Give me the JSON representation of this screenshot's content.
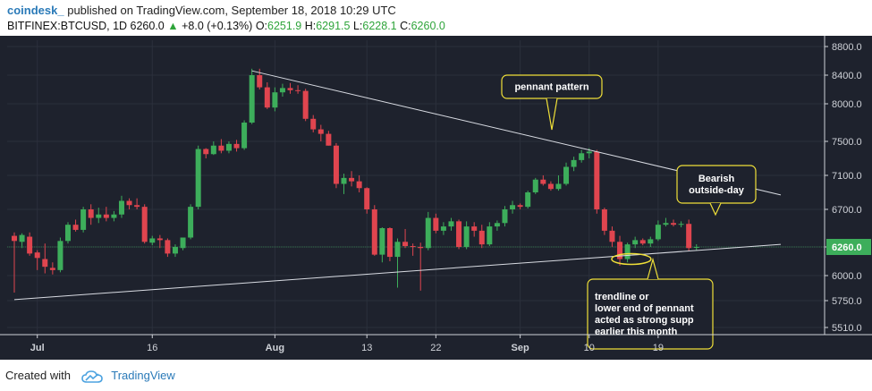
{
  "header": {
    "author": "coindesk_",
    "published": "published on TradingView.com, September 18, 2018 10:29 UTC",
    "symbol": "BITFINEX:BTCUSD, 1D",
    "last": "6260.0",
    "change": "+8.0 (+0.13%)",
    "o_label": "O:",
    "o_value": "6251.9",
    "h_label": "H:",
    "h_value": "6291.5",
    "l_label": "L:",
    "l_value": "6228.1",
    "c_label": "C:",
    "c_value": "6260.0"
  },
  "footer": {
    "created_with": "Created with",
    "brand": "TradingView"
  },
  "colors": {
    "up": "#3dae5b",
    "down": "#e0454f",
    "bg": "#1e222d",
    "annotation": "#f0e038",
    "trendline": "#d8dbe2"
  },
  "chart_data": {
    "type": "candlestick",
    "title": "BITFINEX:BTCUSD, 1D",
    "y_ticks": [
      "8800.0",
      "8400.0",
      "8000.0",
      "7500.0",
      "7100.0",
      "6700.0",
      "6260.0",
      "6000.0",
      "5750.0",
      "5510.0"
    ],
    "y_tick_values": [
      8800,
      8400,
      8000,
      7500,
      7100,
      6700,
      6260,
      6000,
      5750,
      5510
    ],
    "x_ticks": [
      "Jul",
      "16",
      "Aug",
      "13",
      "22",
      "Sep",
      "10",
      "19"
    ],
    "x_tick_days": [
      3,
      18,
      34,
      46,
      55,
      66,
      75,
      84
    ],
    "price_label": "6260.0",
    "candles": [
      {
        "o": 6390,
        "h": 6430,
        "l": 5830,
        "c": 6330
      },
      {
        "o": 6320,
        "h": 6420,
        "l": 6250,
        "c": 6400
      },
      {
        "o": 6380,
        "h": 6430,
        "l": 6180,
        "c": 6200
      },
      {
        "o": 6210,
        "h": 6230,
        "l": 6050,
        "c": 6160
      },
      {
        "o": 6150,
        "h": 6300,
        "l": 6020,
        "c": 6080
      },
      {
        "o": 6070,
        "h": 6120,
        "l": 6010,
        "c": 6050
      },
      {
        "o": 6050,
        "h": 6370,
        "l": 6030,
        "c": 6330
      },
      {
        "o": 6330,
        "h": 6550,
        "l": 6300,
        "c": 6520
      },
      {
        "o": 6520,
        "h": 6580,
        "l": 6440,
        "c": 6460
      },
      {
        "o": 6460,
        "h": 6730,
        "l": 6430,
        "c": 6700
      },
      {
        "o": 6700,
        "h": 6760,
        "l": 6520,
        "c": 6600
      },
      {
        "o": 6600,
        "h": 6720,
        "l": 6540,
        "c": 6640
      },
      {
        "o": 6640,
        "h": 6730,
        "l": 6560,
        "c": 6600
      },
      {
        "o": 6600,
        "h": 6680,
        "l": 6560,
        "c": 6640
      },
      {
        "o": 6640,
        "h": 6860,
        "l": 6600,
        "c": 6800
      },
      {
        "o": 6800,
        "h": 6830,
        "l": 6700,
        "c": 6750
      },
      {
        "o": 6750,
        "h": 6830,
        "l": 6700,
        "c": 6730
      },
      {
        "o": 6730,
        "h": 6760,
        "l": 6300,
        "c": 6320
      },
      {
        "o": 6310,
        "h": 6390,
        "l": 6280,
        "c": 6360
      },
      {
        "o": 6360,
        "h": 6400,
        "l": 6250,
        "c": 6340
      },
      {
        "o": 6340,
        "h": 6360,
        "l": 6170,
        "c": 6200
      },
      {
        "o": 6200,
        "h": 6290,
        "l": 6170,
        "c": 6260
      },
      {
        "o": 6250,
        "h": 6360,
        "l": 6230,
        "c": 6370
      },
      {
        "o": 6370,
        "h": 6760,
        "l": 6350,
        "c": 6730
      },
      {
        "o": 6730,
        "h": 7450,
        "l": 6700,
        "c": 7410
      },
      {
        "o": 7410,
        "h": 7420,
        "l": 7300,
        "c": 7350
      },
      {
        "o": 7350,
        "h": 7500,
        "l": 7340,
        "c": 7450
      },
      {
        "o": 7450,
        "h": 7530,
        "l": 7360,
        "c": 7390
      },
      {
        "o": 7390,
        "h": 7500,
        "l": 7360,
        "c": 7470
      },
      {
        "o": 7470,
        "h": 7520,
        "l": 7380,
        "c": 7420
      },
      {
        "o": 7420,
        "h": 7780,
        "l": 7400,
        "c": 7750
      },
      {
        "o": 7750,
        "h": 8490,
        "l": 7730,
        "c": 8400
      },
      {
        "o": 8400,
        "h": 8490,
        "l": 8200,
        "c": 8230
      },
      {
        "o": 8230,
        "h": 8300,
        "l": 7930,
        "c": 7950
      },
      {
        "o": 7950,
        "h": 8230,
        "l": 7900,
        "c": 8160
      },
      {
        "o": 8160,
        "h": 8280,
        "l": 8100,
        "c": 8220
      },
      {
        "o": 8220,
        "h": 8290,
        "l": 8140,
        "c": 8190
      },
      {
        "o": 8190,
        "h": 8260,
        "l": 8140,
        "c": 8180
      },
      {
        "o": 8180,
        "h": 8210,
        "l": 7770,
        "c": 7800
      },
      {
        "o": 7800,
        "h": 7850,
        "l": 7620,
        "c": 7660
      },
      {
        "o": 7660,
        "h": 7720,
        "l": 7500,
        "c": 7600
      },
      {
        "o": 7600,
        "h": 7640,
        "l": 7450,
        "c": 7450
      },
      {
        "o": 7450,
        "h": 7480,
        "l": 6950,
        "c": 7000
      },
      {
        "o": 7000,
        "h": 7120,
        "l": 6880,
        "c": 7070
      },
      {
        "o": 7070,
        "h": 7150,
        "l": 6970,
        "c": 7030
      },
      {
        "o": 7030,
        "h": 7100,
        "l": 6900,
        "c": 6950
      },
      {
        "o": 6950,
        "h": 6960,
        "l": 6650,
        "c": 6700
      },
      {
        "o": 6700,
        "h": 6750,
        "l": 6180,
        "c": 6190
      },
      {
        "o": 6190,
        "h": 6490,
        "l": 6120,
        "c": 6480
      },
      {
        "o": 6480,
        "h": 6490,
        "l": 6130,
        "c": 6170
      },
      {
        "o": 6170,
        "h": 6360,
        "l": 5880,
        "c": 6320
      },
      {
        "o": 6320,
        "h": 6470,
        "l": 6250,
        "c": 6270
      },
      {
        "o": 6270,
        "h": 6300,
        "l": 6180,
        "c": 6260
      },
      {
        "o": 6260,
        "h": 6310,
        "l": 5850,
        "c": 6250
      },
      {
        "o": 6250,
        "h": 6670,
        "l": 6230,
        "c": 6600
      },
      {
        "o": 6600,
        "h": 6650,
        "l": 6420,
        "c": 6450
      },
      {
        "o": 6450,
        "h": 6550,
        "l": 6400,
        "c": 6500
      },
      {
        "o": 6500,
        "h": 6600,
        "l": 6450,
        "c": 6560
      },
      {
        "o": 6560,
        "h": 6580,
        "l": 6240,
        "c": 6260
      },
      {
        "o": 6260,
        "h": 6560,
        "l": 6240,
        "c": 6500
      },
      {
        "o": 6500,
        "h": 6550,
        "l": 6380,
        "c": 6450
      },
      {
        "o": 6450,
        "h": 6520,
        "l": 6250,
        "c": 6290
      },
      {
        "o": 6290,
        "h": 6550,
        "l": 6270,
        "c": 6500
      },
      {
        "o": 6500,
        "h": 6570,
        "l": 6450,
        "c": 6540
      },
      {
        "o": 6540,
        "h": 6740,
        "l": 6500,
        "c": 6700
      },
      {
        "o": 6700,
        "h": 6800,
        "l": 6650,
        "c": 6750
      },
      {
        "o": 6750,
        "h": 6770,
        "l": 6700,
        "c": 6730
      },
      {
        "o": 6730,
        "h": 6920,
        "l": 6710,
        "c": 6900
      },
      {
        "o": 6900,
        "h": 7070,
        "l": 6880,
        "c": 7050
      },
      {
        "o": 7050,
        "h": 7100,
        "l": 6980,
        "c": 7000
      },
      {
        "o": 7000,
        "h": 7030,
        "l": 6920,
        "c": 6940
      },
      {
        "o": 6940,
        "h": 7100,
        "l": 6920,
        "c": 7000
      },
      {
        "o": 7000,
        "h": 7250,
        "l": 6980,
        "c": 7200
      },
      {
        "o": 7200,
        "h": 7320,
        "l": 7150,
        "c": 7280
      },
      {
        "o": 7280,
        "h": 7400,
        "l": 7250,
        "c": 7360
      },
      {
        "o": 7360,
        "h": 7420,
        "l": 7300,
        "c": 7380
      },
      {
        "o": 7380,
        "h": 7400,
        "l": 6650,
        "c": 6700
      },
      {
        "o": 6700,
        "h": 6720,
        "l": 6400,
        "c": 6450
      },
      {
        "o": 6450,
        "h": 6500,
        "l": 6260,
        "c": 6320
      },
      {
        "o": 6320,
        "h": 6390,
        "l": 6090,
        "c": 6150
      },
      {
        "o": 6150,
        "h": 6310,
        "l": 6120,
        "c": 6290
      },
      {
        "o": 6290,
        "h": 6380,
        "l": 6250,
        "c": 6340
      },
      {
        "o": 6340,
        "h": 6360,
        "l": 6280,
        "c": 6300
      },
      {
        "o": 6300,
        "h": 6380,
        "l": 6260,
        "c": 6350
      },
      {
        "o": 6350,
        "h": 6570,
        "l": 6330,
        "c": 6520
      },
      {
        "o": 6520,
        "h": 6600,
        "l": 6500,
        "c": 6540
      },
      {
        "o": 6540,
        "h": 6580,
        "l": 6500,
        "c": 6520
      },
      {
        "o": 6520,
        "h": 6560,
        "l": 6490,
        "c": 6530
      },
      {
        "o": 6530,
        "h": 6580,
        "l": 6220,
        "c": 6250
      },
      {
        "o": 6251.9,
        "h": 6291.5,
        "l": 6228.1,
        "c": 6260
      }
    ],
    "trendlines": [
      {
        "name": "upper-pennant-line",
        "from": {
          "day": 31,
          "price": 8460
        },
        "to": {
          "day": 100,
          "price": 6870
        }
      },
      {
        "name": "lower-trendline",
        "from": {
          "day": 0,
          "price": 5760
        },
        "to": {
          "day": 100,
          "price": 6290
        }
      }
    ],
    "annotations": [
      {
        "text": "pennant pattern",
        "anchor": {
          "day": 67,
          "price": 7620
        }
      },
      {
        "text": "Bearish\noutside-day",
        "anchor": {
          "day": 93,
          "price": 6580
        }
      },
      {
        "text": "trendline or\nlower end of pennant\nacted as strong supp\nearlier this month",
        "anchor": {
          "day": 79,
          "price": 6170
        }
      }
    ]
  }
}
